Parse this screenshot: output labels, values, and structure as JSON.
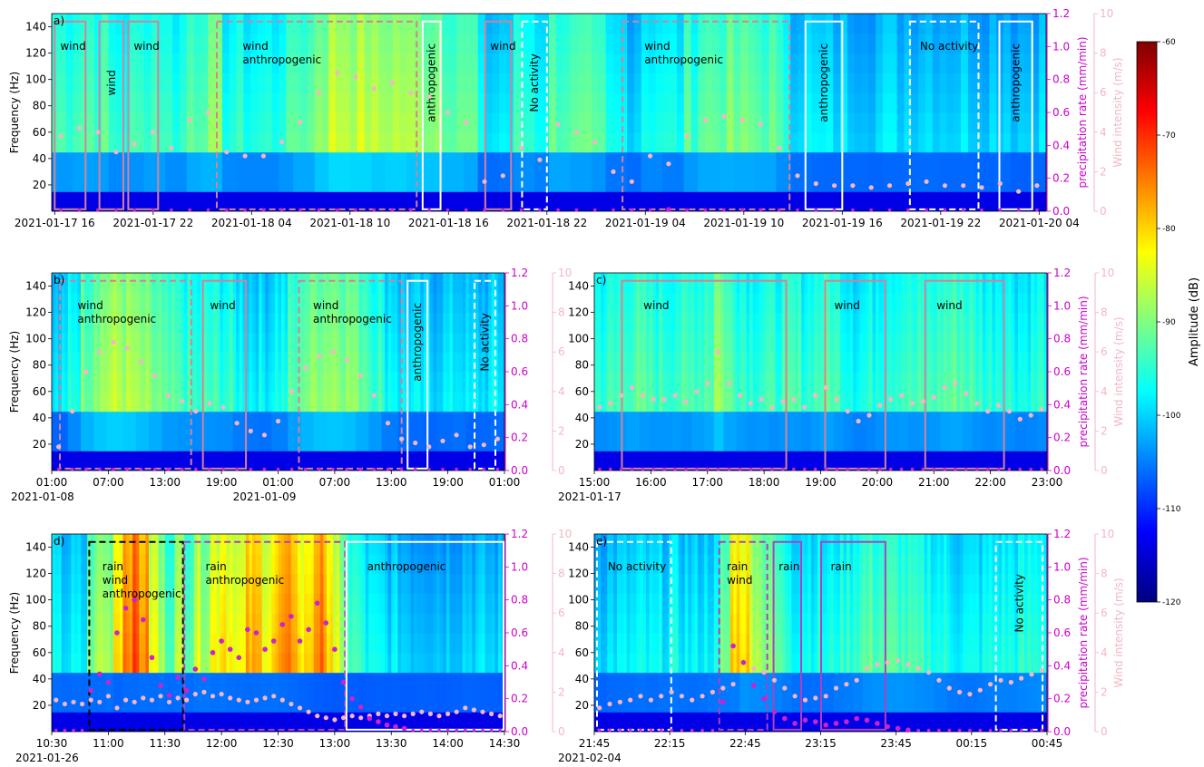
{
  "colors": {
    "precipitation_axis": "#cc00cc",
    "wind_axis": "#f4b6c2",
    "wind_points": "#f4b6c2",
    "rain_points": "#cc22cc",
    "box_wind": "#d4829a",
    "box_anthropogenic": "#ffffff",
    "box_no_activity": "#ffffff",
    "box_rain": "#b040c0",
    "box_rain_wind_anthropogenic": "#000000"
  },
  "colorbar": {
    "label": "Amplitude (dB)",
    "ticks": [
      "-60",
      "-70",
      "-80",
      "-90",
      "-100",
      "-110",
      "-120"
    ],
    "range": [
      -120,
      -60
    ],
    "colormap": "jet"
  },
  "chart_data": [
    {
      "type": "heatmap",
      "panel_label": "a)",
      "ylabel": "Frequency (Hz)",
      "ylabel2": "precipitation rate (mm/min)",
      "ylabel3": "Wind intensity (m/s)",
      "ylim": [
        0,
        150
      ],
      "ylim_precip": [
        0,
        1.2
      ],
      "ylim_wind": [
        0,
        10
      ],
      "yticks": [
        "20",
        "40",
        "60",
        "80",
        "100",
        "120",
        "140"
      ],
      "yticks_precip": [
        "0.0",
        "0.2",
        "0.4",
        "0.6",
        "0.8",
        "1.0",
        "1.2"
      ],
      "yticks_wind": [
        "0",
        "2",
        "4",
        "6",
        "8",
        "10"
      ],
      "xticks": [
        "2021-01-17 16",
        "2021-01-17 22",
        "2021-01-18 04",
        "2021-01-18 10",
        "2021-01-18 16",
        "2021-01-18 22",
        "2021-01-19 04",
        "2021-01-19 10",
        "2021-01-19 16",
        "2021-01-19 22",
        "2021-01-20 04"
      ],
      "date_label": "",
      "annotations": [
        {
          "labels": [
            "wind"
          ],
          "category": "wind",
          "dashed": false,
          "vertical": false
        },
        {
          "labels": [
            "wind"
          ],
          "category": "wind",
          "dashed": false,
          "vertical": true
        },
        {
          "labels": [
            "wind"
          ],
          "category": "wind",
          "dashed": false,
          "vertical": false
        },
        {
          "labels": [
            "wind",
            "anthropogenic"
          ],
          "category": "wind",
          "dashed": true,
          "vertical": false
        },
        {
          "labels": [
            "anthropogenic"
          ],
          "category": "anthropogenic",
          "dashed": false,
          "vertical": true
        },
        {
          "labels": [
            "wind"
          ],
          "category": "wind",
          "dashed": false,
          "vertical": false
        },
        {
          "labels": [
            "No activity"
          ],
          "category": "no_activity",
          "dashed": true,
          "vertical": true
        },
        {
          "labels": [
            "wind",
            "anthropogenic"
          ],
          "category": "wind",
          "dashed": true,
          "vertical": false
        },
        {
          "labels": [
            "anthropogenic"
          ],
          "category": "anthropogenic",
          "dashed": false,
          "vertical": true
        },
        {
          "labels": [
            "No activity"
          ],
          "category": "no_activity",
          "dashed": true,
          "vertical": false
        },
        {
          "labels": [
            "anthropogenic"
          ],
          "category": "anthropogenic",
          "dashed": false,
          "vertical": true
        }
      ],
      "wind_series_ms": [
        3.8,
        4.2,
        4.0,
        3.0,
        3.4,
        4.0,
        3.2,
        4.6,
        5.0,
        3.0,
        2.8,
        2.8,
        3.5,
        4.5,
        6.0,
        7.0,
        6.8,
        6.2,
        6.5,
        6.0,
        5.8,
        5.0,
        4.5,
        1.5,
        1.8,
        3.2,
        2.6,
        4.4,
        4.0,
        3.5,
        2.0,
        1.5,
        2.8,
        2.4,
        3.8,
        4.6,
        4.8,
        4.6,
        4.4,
        3.2,
        1.8,
        1.4,
        1.3,
        1.3,
        1.2,
        1.3,
        1.4,
        1.5,
        1.3,
        1.3,
        1.2,
        1.4,
        1.0,
        1.3
      ],
      "precip_series": [
        0,
        0,
        0,
        0,
        0,
        0,
        0,
        0,
        0,
        0,
        0,
        0,
        0,
        0,
        0,
        0,
        0,
        0,
        0,
        0,
        0,
        0,
        0,
        0,
        0,
        0,
        0,
        0,
        0,
        0,
        0,
        0,
        0,
        0.01,
        0,
        0,
        0,
        0,
        0,
        0,
        0,
        0,
        0,
        0,
        0,
        0,
        0,
        0,
        0,
        0,
        0,
        0,
        0,
        0
      ]
    },
    {
      "type": "heatmap",
      "panel_label": "b)",
      "ylabel": "Frequency (Hz)",
      "ylim": [
        0,
        150
      ],
      "ylim_precip": [
        0,
        1.2
      ],
      "ylim_wind": [
        0,
        10
      ],
      "yticks": [
        "20",
        "40",
        "60",
        "80",
        "100",
        "120",
        "140"
      ],
      "yticks_precip": [
        "0.0",
        "0.2",
        "0.4",
        "0.6",
        "0.8",
        "1.0",
        "1.2"
      ],
      "yticks_wind": [
        "0",
        "2",
        "4",
        "6",
        "8",
        "10"
      ],
      "xticks": [
        "01:00",
        "07:00",
        "13:00",
        "19:00",
        "01:00",
        "07:00",
        "13:00",
        "19:00",
        "01:00"
      ],
      "date_labels": [
        "2021-01-08",
        "2021-01-09"
      ],
      "annotations": [
        {
          "labels": [
            "wind",
            "anthropogenic"
          ],
          "category": "wind",
          "dashed": true,
          "vertical": false
        },
        {
          "labels": [
            "wind"
          ],
          "category": "wind",
          "dashed": false,
          "vertical": false
        },
        {
          "labels": [
            "wind",
            "anthropogenic"
          ],
          "category": "wind",
          "dashed": true,
          "vertical": false
        },
        {
          "labels": [
            "anthropogenic"
          ],
          "category": "anthropogenic",
          "dashed": false,
          "vertical": true
        },
        {
          "labels": [
            "No activity"
          ],
          "category": "no_activity",
          "dashed": true,
          "vertical": true
        }
      ],
      "wind_series_ms": [
        1.2,
        3.0,
        5.0,
        6.0,
        6.5,
        6.2,
        5.5,
        4.8,
        3.8,
        3.5,
        3.0,
        3.4,
        3.2,
        2.4,
        2.0,
        1.8,
        2.5,
        4.0,
        5.2,
        5.8,
        6.0,
        5.6,
        4.8,
        3.8,
        2.4,
        1.6,
        1.4,
        1.2,
        1.5,
        1.8,
        1.2,
        1.3,
        1.6
      ],
      "precip_series": [
        0,
        0,
        0,
        0,
        0,
        0,
        0,
        0,
        0,
        0,
        0,
        0,
        0,
        0,
        0,
        0,
        0,
        0,
        0,
        0,
        0,
        0,
        0,
        0,
        0,
        0,
        0,
        0,
        0,
        0,
        0,
        0,
        0
      ]
    },
    {
      "type": "heatmap",
      "panel_label": "c)",
      "ylim": [
        0,
        150
      ],
      "ylim_precip": [
        0,
        1.2
      ],
      "ylim_wind": [
        0,
        10
      ],
      "ylabel2": "precipitation rate (mm/min)",
      "ylabel3": "Wind intensity (m/s)",
      "yticks": [
        "20",
        "40",
        "60",
        "80",
        "100",
        "120",
        "140"
      ],
      "yticks_precip": [
        "0.0",
        "0.2",
        "0.4",
        "0.6",
        "0.8",
        "1.0",
        "1.2"
      ],
      "yticks_wind": [
        "0",
        "2",
        "4",
        "6",
        "8",
        "10"
      ],
      "xticks": [
        "15:00",
        "16:00",
        "17:00",
        "18:00",
        "19:00",
        "20:00",
        "21:00",
        "22:00",
        "23:00"
      ],
      "date_label": "2021-01-17",
      "annotations": [
        {
          "labels": [
            "wind"
          ],
          "category": "wind",
          "dashed": false,
          "vertical": false
        },
        {
          "labels": [
            "wind"
          ],
          "category": "wind",
          "dashed": false,
          "vertical": false
        },
        {
          "labels": [
            "wind"
          ],
          "category": "wind",
          "dashed": false,
          "vertical": false
        }
      ],
      "wind_series_ms": [
        3.2,
        3.4,
        3.8,
        4.2,
        3.8,
        3.6,
        3.6,
        3.8,
        3.5,
        4.0,
        4.4,
        6.0,
        4.4,
        3.8,
        3.4,
        3.6,
        3.2,
        3.5,
        3.6,
        3.2,
        3.8,
        4.2,
        3.6,
        3.0,
        2.5,
        2.8,
        3.3,
        3.6,
        3.8,
        3.4,
        3.5,
        3.7,
        4.2,
        4.4,
        3.9,
        3.4,
        3.0,
        3.3,
        3.0,
        2.6,
        2.8,
        3.1
      ],
      "precip_series": [
        0,
        0,
        0,
        0,
        0,
        0,
        0,
        0,
        0,
        0,
        0,
        0,
        0,
        0,
        0,
        0,
        0,
        0,
        0,
        0,
        0,
        0,
        0,
        0,
        0,
        0,
        0,
        0,
        0,
        0,
        0,
        0,
        0,
        0,
        0,
        0,
        0,
        0,
        0,
        0,
        0,
        0
      ]
    },
    {
      "type": "heatmap",
      "panel_label": "d)",
      "ylabel": "Frequency (Hz)",
      "ylim": [
        0,
        150
      ],
      "ylim_precip": [
        0,
        1.2
      ],
      "ylim_wind": [
        0,
        10
      ],
      "yticks": [
        "20",
        "40",
        "60",
        "80",
        "100",
        "120",
        "140"
      ],
      "yticks_precip": [
        "0.0",
        "0.2",
        "0.4",
        "0.6",
        "0.8",
        "1.0",
        "1.2"
      ],
      "yticks_wind": [
        "0",
        "2",
        "4",
        "6",
        "8",
        "10"
      ],
      "xticks": [
        "10:30",
        "11:00",
        "11:30",
        "12:00",
        "12:30",
        "13:00",
        "13:30",
        "14:00",
        "14:30"
      ],
      "date_label": "2021-01-26",
      "annotations": [
        {
          "labels": [
            "rain",
            "wind",
            "anthropogenic"
          ],
          "category": "rain_wind_anthropogenic",
          "dashed": true,
          "vertical": false
        },
        {
          "labels": [
            "rain",
            "anthropogenic"
          ],
          "category": "rain",
          "dashed": true,
          "vertical": false
        },
        {
          "labels": [
            "anthropogenic"
          ],
          "category": "anthropogenic",
          "dashed": false,
          "vertical": false
        }
      ],
      "wind_series_ms": [
        1.6,
        1.4,
        1.5,
        1.4,
        1.6,
        1.5,
        1.8,
        1.2,
        1.6,
        1.5,
        1.7,
        1.6,
        1.8,
        1.5,
        1.7,
        1.6,
        1.9,
        2.0,
        1.8,
        1.9,
        1.7,
        1.6,
        1.5,
        1.6,
        1.7,
        1.8,
        1.6,
        1.4,
        1.2,
        1.0,
        0.8,
        0.7,
        0.6,
        0.7,
        0.8,
        0.7,
        0.8,
        0.9,
        0.8,
        0.9,
        0.8,
        0.9,
        1.0,
        0.9,
        0.8,
        0.9,
        1.0,
        1.2,
        1.1,
        1.0,
        0.9,
        0.8
      ],
      "precip_series": [
        0,
        0,
        0,
        0,
        0.25,
        0.35,
        0.3,
        0.6,
        0.75,
        0.8,
        0.68,
        0.45,
        0.28,
        0.22,
        0.33,
        0.25,
        0.38,
        0.32,
        0.48,
        0.55,
        0.5,
        0.45,
        0.62,
        0.6,
        0.5,
        0.55,
        0.65,
        0.7,
        0.55,
        0.62,
        0.78,
        0.66,
        0.5,
        0.3,
        0.2,
        0.15,
        0.08,
        0.06,
        0.04,
        0.03,
        0.02,
        0,
        0,
        0,
        0,
        0,
        0,
        0,
        0,
        0,
        0,
        0
      ]
    },
    {
      "type": "heatmap",
      "panel_label": "e)",
      "ylim": [
        0,
        150
      ],
      "ylim_precip": [
        0,
        1.2
      ],
      "ylim_wind": [
        0,
        10
      ],
      "ylabel2": "precipitation rate (mm/min)",
      "ylabel3": "Wind intensity (m/s)",
      "yticks": [
        "20",
        "40",
        "60",
        "80",
        "100",
        "120",
        "140"
      ],
      "yticks_precip": [
        "0.0",
        "0.2",
        "0.4",
        "0.6",
        "0.8",
        "1.0",
        "1.2"
      ],
      "yticks_wind": [
        "0",
        "2",
        "4",
        "6",
        "8",
        "10"
      ],
      "xticks": [
        "21:45",
        "22:15",
        "22:45",
        "23:15",
        "23:45",
        "00:15",
        "00:45"
      ],
      "date_label": "2021-02-04",
      "annotations": [
        {
          "labels": [
            "No activity"
          ],
          "category": "no_activity",
          "dashed": true,
          "vertical": false
        },
        {
          "labels": [
            "rain",
            "wind"
          ],
          "category": "rain",
          "dashed": true,
          "vertical": false
        },
        {
          "labels": [
            "rain"
          ],
          "category": "rain",
          "dashed": false,
          "vertical": false
        },
        {
          "labels": [
            "rain"
          ],
          "category": "rain",
          "dashed": false,
          "vertical": false
        },
        {
          "labels": [
            "No activity"
          ],
          "category": "no_activity",
          "dashed": true,
          "vertical": true
        }
      ],
      "wind_series_ms": [
        1.2,
        1.4,
        1.5,
        1.6,
        1.8,
        1.6,
        1.8,
        2.0,
        1.8,
        1.6,
        1.8,
        2.0,
        2.2,
        2.4,
        3.5,
        3.2,
        3.0,
        2.6,
        2.2,
        1.8,
        1.6,
        1.7,
        1.8,
        2.2,
        2.4,
        2.6,
        3.2,
        3.4,
        3.5,
        3.6,
        3.4,
        3.2,
        3.0,
        2.6,
        2.2,
        2.0,
        1.9,
        2.1,
        2.4,
        2.6,
        2.5,
        2.7,
        2.9,
        3.1
      ],
      "precip_series": [
        0,
        0,
        0,
        0,
        0,
        0,
        0,
        0,
        0,
        0,
        0,
        0,
        0.18,
        0.52,
        0.42,
        0.28,
        0.2,
        0.12,
        0.08,
        0.05,
        0.07,
        0.06,
        0.04,
        0.05,
        0.06,
        0.08,
        0.07,
        0.05,
        0.03,
        0.02,
        0.01,
        0,
        0,
        0,
        0,
        0,
        0,
        0,
        0,
        0,
        0,
        0,
        0,
        0
      ]
    }
  ]
}
